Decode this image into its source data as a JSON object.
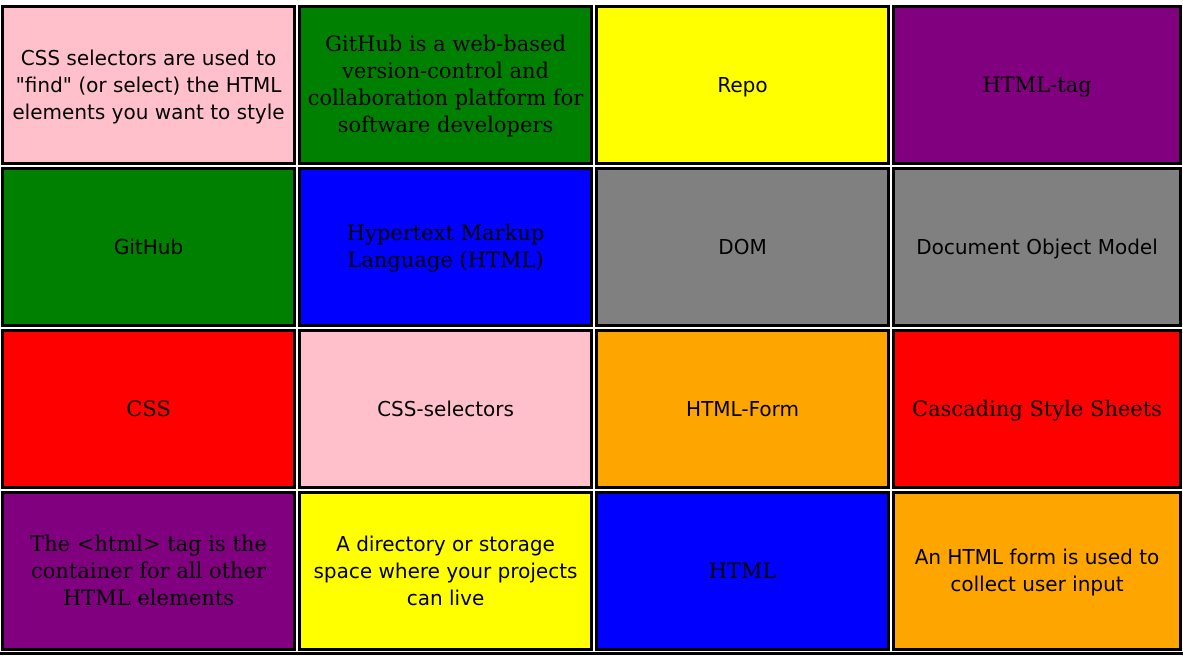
{
  "cards": [
    {
      "text": "CSS selectors are used to \"find\" (or select) the HTML elements you want to style",
      "color": "#ffc0cb",
      "font": "sans"
    },
    {
      "text": "GitHub is a web-based version-control and collaboration platform for software developers",
      "color": "#008000",
      "font": "serif"
    },
    {
      "text": "Repo",
      "color": "#ffff00",
      "font": "sans"
    },
    {
      "text": "HTML-tag",
      "color": "#800080",
      "font": "serif"
    },
    {
      "text": "GitHub",
      "color": "#008000",
      "font": "sans"
    },
    {
      "text": "Hypertext Markup Language (HTML)",
      "color": "#0000ff",
      "font": "serif"
    },
    {
      "text": "DOM",
      "color": "#808080",
      "font": "sans"
    },
    {
      "text": "Document Object Model",
      "color": "#808080",
      "font": "sans"
    },
    {
      "text": "CSS",
      "color": "#ff0000",
      "font": "serif"
    },
    {
      "text": "CSS-selectors",
      "color": "#ffc0cb",
      "font": "sans"
    },
    {
      "text": "HTML-Form",
      "color": "#ffa500",
      "font": "sans"
    },
    {
      "text": "Cascading Style Sheets",
      "color": "#ff0000",
      "font": "serif"
    },
    {
      "text": "The <html> tag is the container for all other HTML elements",
      "color": "#800080",
      "font": "serif"
    },
    {
      "text": "A directory or storage space where your projects can live",
      "color": "#ffff00",
      "font": "sans"
    },
    {
      "text": "HTML",
      "color": "#0000ff",
      "font": "serif"
    },
    {
      "text": "An HTML form is used to collect user input",
      "color": "#ffa500",
      "font": "sans"
    }
  ]
}
